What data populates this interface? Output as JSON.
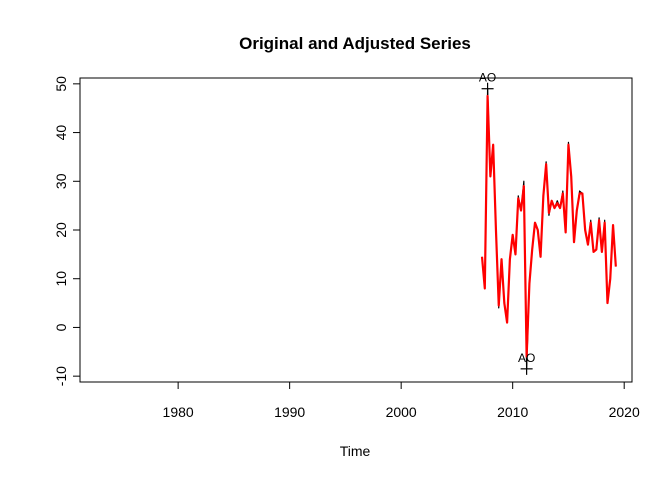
{
  "chart_data": {
    "type": "line",
    "title": "Original and Adjusted Series",
    "xlabel": "Time",
    "ylabel": "",
    "xlim": [
      1971.2,
      2020.7
    ],
    "ylim": [
      -11.2,
      51.2
    ],
    "xticks": [
      1980,
      1990,
      2000,
      2010,
      2020
    ],
    "yticks": [
      -10,
      0,
      10,
      20,
      30,
      40,
      50
    ],
    "grid": false,
    "legend": "none",
    "colors": {
      "original": "#000000",
      "adjusted": "#ff0000"
    },
    "x": [
      2007.25,
      2007.5,
      2007.75,
      2008,
      2008.25,
      2008.5,
      2008.75,
      2009,
      2009.25,
      2009.5,
      2009.75,
      2010,
      2010.25,
      2010.5,
      2010.75,
      2011,
      2011.25,
      2011.5,
      2011.75,
      2012,
      2012.25,
      2012.5,
      2012.75,
      2013,
      2013.25,
      2013.5,
      2013.75,
      2014,
      2014.25,
      2014.5,
      2014.75,
      2015,
      2015.25,
      2015.5,
      2015.75,
      2016,
      2016.25,
      2016.5,
      2016.75,
      2017,
      2017.25,
      2017.5,
      2017.75,
      2018,
      2018.25,
      2018.5,
      2018.75,
      2019,
      2019.25
    ],
    "series": [
      {
        "values": [
          14.5,
          8,
          49,
          31,
          37.5,
          20,
          4,
          14,
          5,
          1,
          14,
          19,
          15,
          27,
          24,
          30,
          -8.5,
          9,
          16,
          21.5,
          20,
          14.5,
          27,
          34,
          23,
          26,
          24.5,
          26,
          24.5,
          28,
          19.5,
          38,
          31,
          17.5,
          24,
          28,
          27.5,
          20,
          17,
          22,
          15.5,
          16,
          22.5,
          15.5,
          22,
          5,
          10,
          21,
          12.5
        ]
      },
      {
        "values": [
          14.5,
          8,
          47.5,
          31,
          37.5,
          20,
          4.5,
          14,
          5,
          1,
          14,
          19,
          15,
          26.5,
          24,
          29,
          -6,
          9,
          16,
          21.5,
          20,
          14.5,
          27,
          33.5,
          23.5,
          26,
          24.5,
          25.5,
          24.5,
          27.5,
          19.5,
          37.5,
          31,
          17.5,
          24,
          27.5,
          27.5,
          20,
          17,
          21.5,
          15.5,
          16,
          22,
          15.5,
          21.5,
          5,
          10,
          21,
          12.5
        ]
      }
    ],
    "annotations": [
      {
        "label": "AO",
        "x": 2007.75,
        "y": 49
      },
      {
        "label": "AO",
        "x": 2011.25,
        "y": -8.5
      }
    ]
  }
}
